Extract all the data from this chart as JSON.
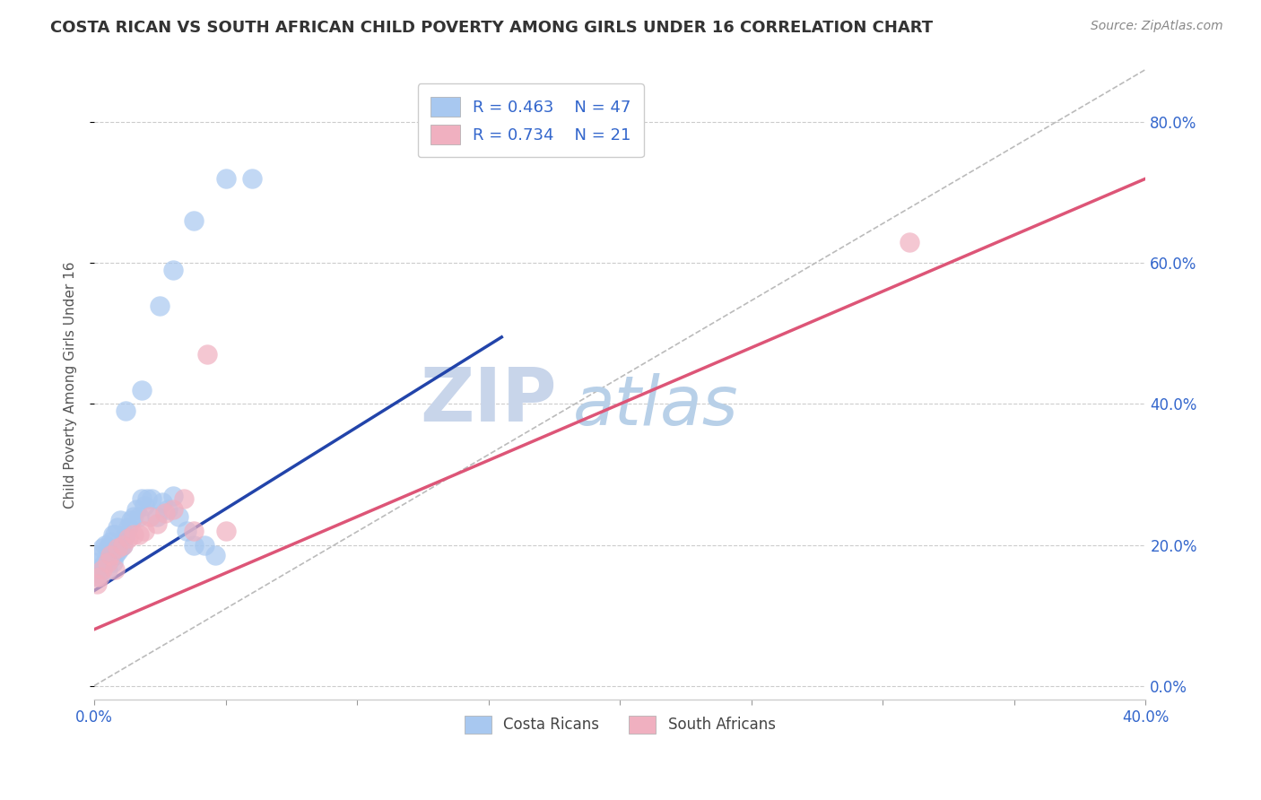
{
  "title": "COSTA RICAN VS SOUTH AFRICAN CHILD POVERTY AMONG GIRLS UNDER 16 CORRELATION CHART",
  "source": "Source: ZipAtlas.com",
  "ylabel": "Child Poverty Among Girls Under 16",
  "xlim": [
    0.0,
    0.4
  ],
  "ylim": [
    -0.02,
    0.875
  ],
  "xticks": [
    0.0,
    0.05,
    0.1,
    0.15,
    0.2,
    0.25,
    0.3,
    0.35,
    0.4
  ],
  "xtick_labels": [
    "0.0%",
    "",
    "",
    "",
    "",
    "",
    "",
    "",
    "40.0%"
  ],
  "yticks": [
    0.0,
    0.2,
    0.4,
    0.6,
    0.8
  ],
  "ytick_labels_right": [
    "0.0%",
    "20.0%",
    "40.0%",
    "60.0%",
    "80.0%"
  ],
  "blue_color": "#a8c8f0",
  "pink_color": "#f0b0c0",
  "blue_line_color": "#2244aa",
  "pink_line_color": "#dd5577",
  "diag_color": "#bbbbbb",
  "watermark_zip": "ZIP",
  "watermark_atlas": "atlas",
  "watermark_color_zip": "#c8d5ea",
  "watermark_color_atlas": "#b8d0e8",
  "legend_R_color": "#3366cc",
  "R_blue": 0.463,
  "N_blue": 47,
  "R_pink": 0.734,
  "N_pink": 21,
  "blue_line_x": [
    0.0,
    0.155
  ],
  "blue_line_y": [
    0.135,
    0.495
  ],
  "pink_line_x": [
    0.0,
    0.4
  ],
  "pink_line_y": [
    0.08,
    0.72
  ],
  "blue_x": [
    0.001,
    0.001,
    0.002,
    0.002,
    0.003,
    0.003,
    0.004,
    0.004,
    0.005,
    0.005,
    0.006,
    0.006,
    0.007,
    0.007,
    0.008,
    0.008,
    0.009,
    0.009,
    0.01,
    0.01,
    0.011,
    0.012,
    0.013,
    0.014,
    0.015,
    0.016,
    0.017,
    0.018,
    0.019,
    0.02,
    0.022,
    0.024,
    0.026,
    0.028,
    0.03,
    0.032,
    0.035,
    0.038,
    0.042,
    0.046,
    0.012,
    0.018,
    0.025,
    0.03,
    0.038,
    0.05,
    0.06
  ],
  "blue_y": [
    0.155,
    0.175,
    0.16,
    0.185,
    0.17,
    0.195,
    0.175,
    0.2,
    0.165,
    0.195,
    0.18,
    0.205,
    0.175,
    0.215,
    0.185,
    0.215,
    0.19,
    0.225,
    0.195,
    0.235,
    0.2,
    0.215,
    0.225,
    0.235,
    0.24,
    0.25,
    0.24,
    0.265,
    0.255,
    0.265,
    0.265,
    0.24,
    0.26,
    0.25,
    0.27,
    0.24,
    0.22,
    0.2,
    0.2,
    0.185,
    0.39,
    0.42,
    0.54,
    0.59,
    0.66,
    0.72,
    0.72
  ],
  "pink_x": [
    0.001,
    0.002,
    0.003,
    0.005,
    0.006,
    0.008,
    0.009,
    0.011,
    0.013,
    0.015,
    0.017,
    0.019,
    0.021,
    0.024,
    0.027,
    0.03,
    0.034,
    0.038,
    0.043,
    0.05,
    0.31
  ],
  "pink_y": [
    0.145,
    0.155,
    0.165,
    0.175,
    0.185,
    0.165,
    0.195,
    0.2,
    0.21,
    0.215,
    0.215,
    0.22,
    0.24,
    0.23,
    0.245,
    0.25,
    0.265,
    0.22,
    0.47,
    0.22,
    0.63
  ]
}
